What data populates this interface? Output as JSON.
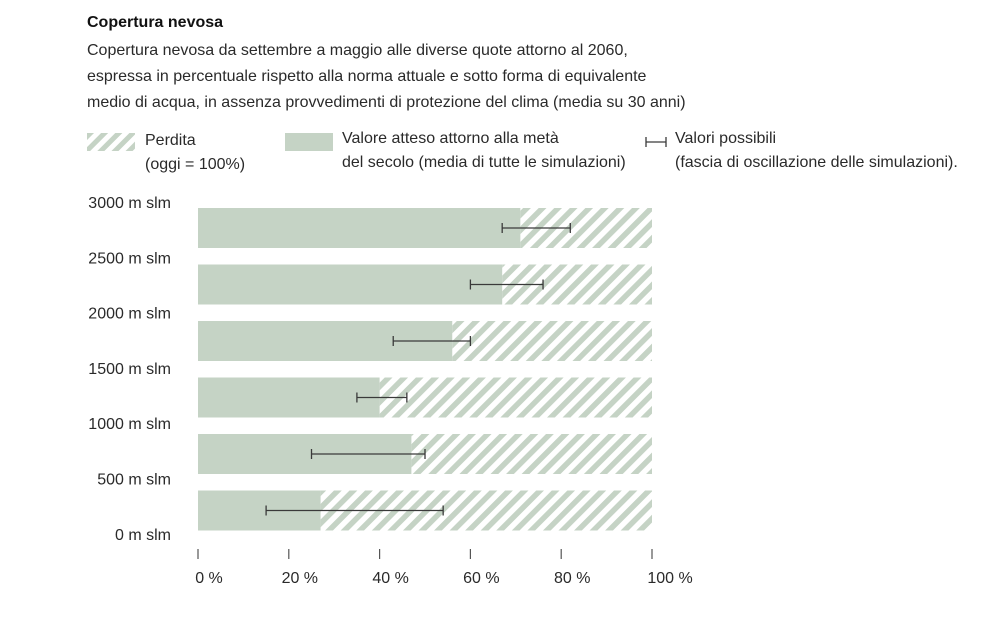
{
  "title": "Copertura nevosa",
  "subtitle_lines": [
    "Copertura nevosa da settembre a maggio alle diverse quote attorno al 2060,",
    "espressa in percentuale rispetto alla norma attuale e sotto forma di equivalente",
    "medio di acqua, in assenza provvedimenti di protezione del clima (media su 30 anni)"
  ],
  "legend": {
    "loss": {
      "line1": "Perdita",
      "line2": "(oggi = 100%)"
    },
    "expected": {
      "line1": "Valore atteso attorno alla metà",
      "line2": "del secolo (media di tutte le simulazioni)"
    },
    "range": {
      "line1": "Valori possibili",
      "line2": "(fascia di oscillazione delle simulazioni)."
    }
  },
  "colors": {
    "bar": "#c5d3c5",
    "hatch": "#c5d3c5",
    "errorbar": "#3a3a3a",
    "axis": "#555555"
  },
  "chart_data": {
    "type": "bar",
    "orientation": "horizontal",
    "stacked_with_remainder_to": 100,
    "y_tick_labels": [
      "3000 m slm",
      "2500 m slm",
      "2000 m slm",
      "1500 m slm",
      "1000 m slm",
      "500 m slm",
      "0 m slm"
    ],
    "x_tick_labels": [
      "0 %",
      "20 %",
      "40 %",
      "60 %",
      "80 %",
      "100 %"
    ],
    "x_ticks": [
      0,
      20,
      40,
      60,
      80,
      100
    ],
    "xlim": [
      0,
      100
    ],
    "bars": [
      {
        "value": 71,
        "low": 67,
        "high": 82
      },
      {
        "value": 67,
        "low": 60,
        "high": 76
      },
      {
        "value": 56,
        "low": 43,
        "high": 60
      },
      {
        "value": 40,
        "low": 35,
        "high": 46
      },
      {
        "value": 47,
        "low": 25,
        "high": 50
      },
      {
        "value": 27,
        "low": 15,
        "high": 54
      }
    ],
    "series": [
      {
        "name": "Valore atteso attorno alla metà del secolo (media di tutte le simulazioni)",
        "values": [
          71,
          67,
          56,
          40,
          47,
          27
        ]
      },
      {
        "name": "Perdita",
        "values": [
          29,
          33,
          44,
          60,
          53,
          73
        ]
      }
    ],
    "grid": false
  }
}
